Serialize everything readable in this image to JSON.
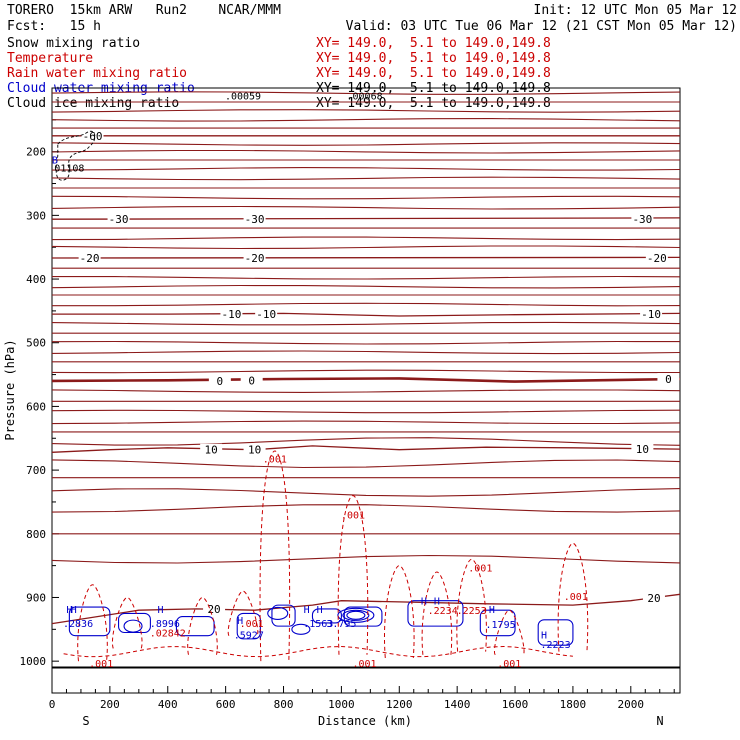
{
  "header": {
    "model_line": "TORERO  15km ARW   Run2    NCAR/MMM",
    "init_line": "Init: 12 UTC Mon 05 Mar 12",
    "fcst_line": "Fcst:   15 h",
    "valid_line": "Valid: 03 UTC Tue 06 Mar 12 (21 CST Mon 05 Mar 12)",
    "fields": [
      {
        "name": "Snow mixing ratio",
        "xy": "",
        "color": "#000000"
      },
      {
        "name": "Temperature",
        "xy": "XY= 149.0,  5.1 to 149.0,149.8",
        "color": "#cc0000"
      },
      {
        "name": "Rain water mixing ratio",
        "xy": "XY= 149.0,  5.1 to 149.0,149.8",
        "color": "#cc0000"
      },
      {
        "name": "Cloud water mixing ratio",
        "xy": "XY= 149.0,  5.1 to 149.0,149.8",
        "color": "#0000cc"
      },
      {
        "name": "Cloud ice mixing ratio",
        "xy": "XY= 149.0,  5.1 to 149.0,149.8",
        "color": "#000000"
      }
    ],
    "snow_xy": "XY= 149.0,  5.1 to 149.0,149.8"
  },
  "chart_data": {
    "type": "line",
    "subtype": "vertical cross-section contour",
    "xlabel": "Distance (km)",
    "ylabel": "Pressure (hPa)",
    "xlim": [
      0,
      2170
    ],
    "ylim": [
      1050,
      100
    ],
    "x_ticks": [
      0,
      200,
      400,
      600,
      800,
      1000,
      1200,
      1400,
      1600,
      1800,
      2000
    ],
    "y_ticks": [
      200,
      300,
      400,
      500,
      600,
      700,
      800,
      900,
      1000
    ],
    "end_labels": {
      "left": "S",
      "right": "N"
    },
    "colors": {
      "temperature": "#8b1a1a",
      "rain": "#cc0000",
      "cloud_water": "#0000cc",
      "ground": "#000000"
    },
    "temperature_series": [
      {
        "name": "-60",
        "x": [
          0,
          2170
        ],
        "y": [
          175,
          175
        ]
      },
      {
        "name": "-30",
        "x": [
          0,
          2170
        ],
        "y": [
          306,
          304
        ]
      },
      {
        "name": "-20",
        "x": [
          0,
          2170
        ],
        "y": [
          367,
          366
        ]
      },
      {
        "name": "-10",
        "x": [
          0,
          400,
          800,
          1200,
          1600,
          2170
        ],
        "y": [
          455,
          455,
          454,
          458,
          456,
          454
        ]
      },
      {
        "name": "0",
        "x": [
          0,
          400,
          800,
          1200,
          1600,
          2170
        ],
        "y": [
          560,
          559,
          557,
          556,
          561,
          557
        ]
      },
      {
        "name": "10",
        "x": [
          0,
          200,
          400,
          700,
          900,
          1200,
          1500,
          1800,
          2170
        ],
        "y": [
          672,
          668,
          665,
          668,
          662,
          668,
          664,
          665,
          667
        ]
      },
      {
        "name": "20",
        "x": [
          0,
          300,
          500,
          700,
          900,
          1000,
          1200,
          1500,
          1800,
          2000,
          2170
        ],
        "y": [
          941,
          920,
          918,
          920,
          912,
          905,
          907,
          910,
          912,
          905,
          895
        ]
      }
    ],
    "temperature_labels": [
      {
        "text": "-60",
        "x": 140,
        "y": 175
      },
      {
        "text": "-30",
        "x": 230,
        "y": 306
      },
      {
        "text": "-30",
        "x": 700,
        "y": 306
      },
      {
        "text": "-30",
        "x": 2040,
        "y": 306
      },
      {
        "text": "-20",
        "x": 130,
        "y": 367
      },
      {
        "text": "-20",
        "x": 700,
        "y": 367
      },
      {
        "text": "-20",
        "x": 2090,
        "y": 367
      },
      {
        "text": "-10",
        "x": 620,
        "y": 455
      },
      {
        "text": "-10",
        "x": 740,
        "y": 455
      },
      {
        "text": "-10",
        "x": 2070,
        "y": 455
      },
      {
        "text": "0",
        "x": 580,
        "y": 560
      },
      {
        "text": "0",
        "x": 690,
        "y": 559
      },
      {
        "text": "0",
        "x": 2130,
        "y": 557
      },
      {
        "text": "10",
        "x": 550,
        "y": 668
      },
      {
        "text": "10",
        "x": 700,
        "y": 668
      },
      {
        "text": "10",
        "x": 2040,
        "y": 667
      },
      {
        "text": "20",
        "x": 560,
        "y": 918
      },
      {
        "text": "20",
        "x": 2080,
        "y": 901
      }
    ],
    "rain_labels": [
      {
        "text": ".001",
        "x": 770,
        "y": 682
      },
      {
        "text": ".001",
        "x": 1040,
        "y": 770
      },
      {
        "text": ".001",
        "x": 1480,
        "y": 853
      },
      {
        "text": ".001",
        "x": 1810,
        "y": 898
      },
      {
        "text": ".001",
        "x": 690,
        "y": 940
      },
      {
        "text": ".001",
        "x": 170,
        "y": 1003
      },
      {
        "text": ".001",
        "x": 1080,
        "y": 1003
      },
      {
        "text": ".001",
        "x": 1580,
        "y": 1003
      },
      {
        "text": ".02842",
        "x": 400,
        "y": 955
      },
      {
        "text": ".2253",
        "x": 1450,
        "y": 920
      },
      {
        "text": ".2234",
        "x": 1350,
        "y": 920
      }
    ],
    "cloud_labels": [
      {
        "text": ".2836",
        "x": 90,
        "y": 940
      },
      {
        "text": ".8996",
        "x": 390,
        "y": 940
      },
      {
        "text": ".5927",
        "x": 680,
        "y": 958
      },
      {
        "text": ".1563",
        "x": 920,
        "y": 940
      },
      {
        "text": "3.795",
        "x": 1000,
        "y": 940
      },
      {
        "text": ".1795",
        "x": 1550,
        "y": 942
      },
      {
        "text": ".2223",
        "x": 1740,
        "y": 973
      }
    ],
    "high_markers": [
      {
        "text": "H",
        "x": 60,
        "y": 918
      },
      {
        "text": "H",
        "x": 75,
        "y": 918
      },
      {
        "text": "H",
        "x": 375,
        "y": 918
      },
      {
        "text": "H",
        "x": 650,
        "y": 935
      },
      {
        "text": "H",
        "x": 880,
        "y": 918
      },
      {
        "text": "H",
        "x": 925,
        "y": 918
      },
      {
        "text": "H",
        "x": 1285,
        "y": 905
      },
      {
        "text": "H",
        "x": 1330,
        "y": 905
      },
      {
        "text": "H",
        "x": 1520,
        "y": 918
      },
      {
        "text": "H",
        "x": 1700,
        "y": 958
      },
      {
        "text": "B",
        "x": 10,
        "y": 212
      }
    ],
    "upper_labels": [
      {
        "text": ".00059",
        "x": 660,
        "y": 112
      },
      {
        "text": ".00068",
        "x": 1080,
        "y": 112
      },
      {
        "text": "01108",
        "x": 60,
        "y": 225
      }
    ]
  }
}
